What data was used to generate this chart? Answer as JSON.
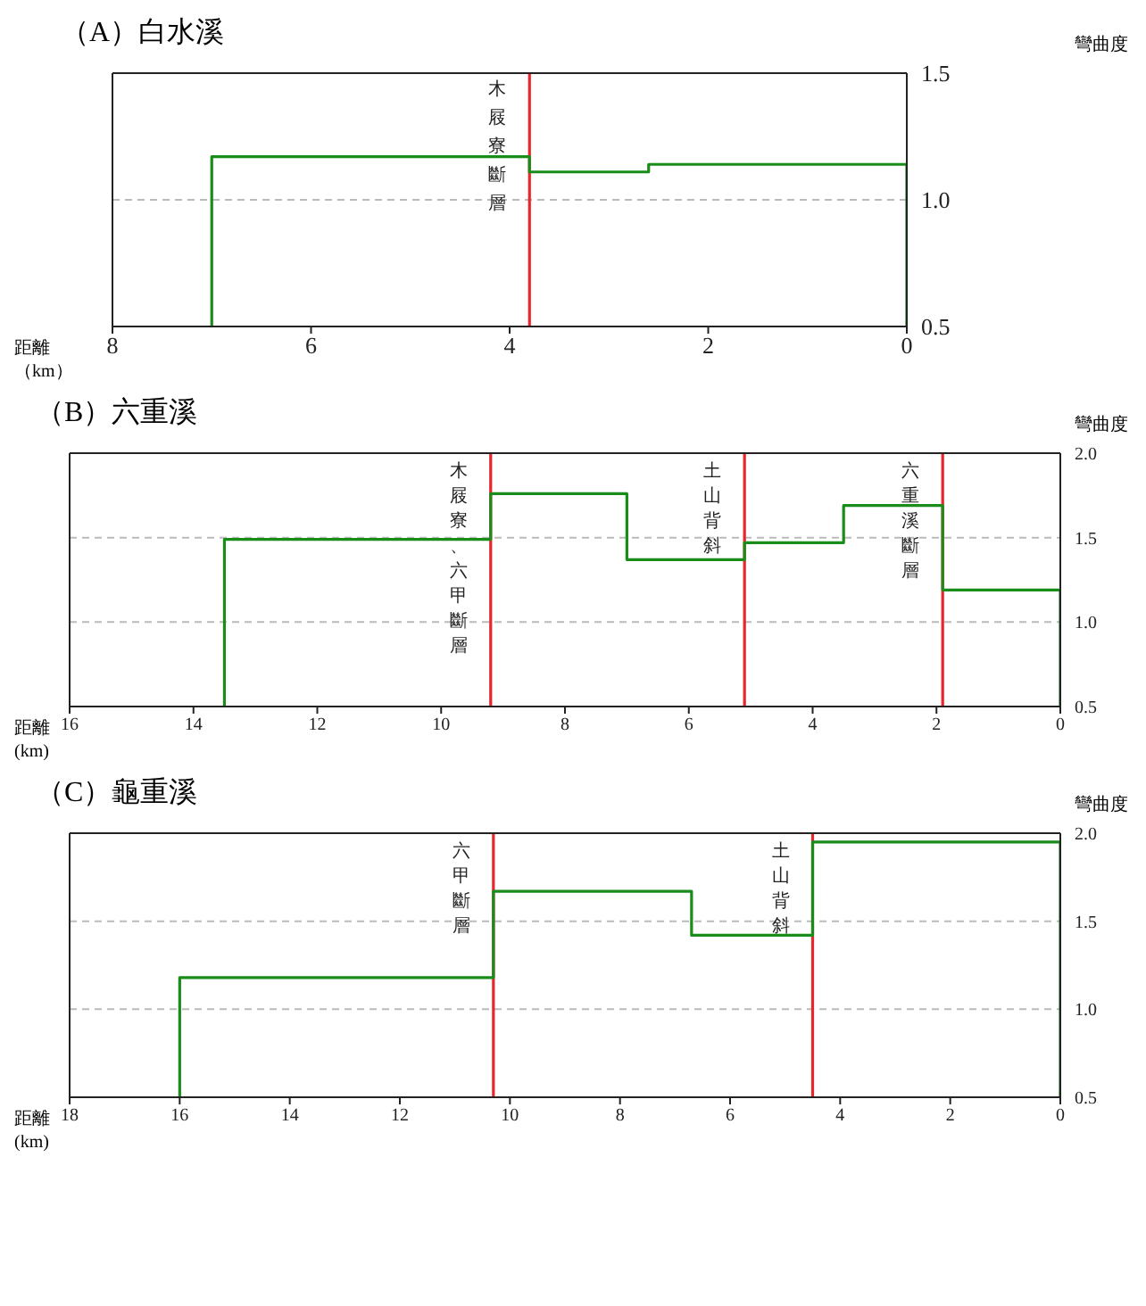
{
  "chart_data": [
    {
      "type": "line",
      "title": "（A）白水溪",
      "ylabel": "彎曲度",
      "xlabel": "距離（km）",
      "xlim": [
        8,
        0
      ],
      "xticks": [
        8,
        6,
        4,
        2,
        0
      ],
      "ylim": [
        0.5,
        1.5
      ],
      "yticks": [
        {
          "value": 0.5,
          "label": "0.5"
        },
        {
          "value": 1,
          "label": "1.0"
        },
        {
          "value": 1.5,
          "label": "1.5"
        }
      ],
      "grid": "y",
      "legend": false,
      "marker": "none",
      "series": [
        {
          "color": "#1a8c1a",
          "x": [
            7.0,
            7.0,
            3.8,
            3.8,
            2.6,
            2.6,
            0,
            0
          ],
          "values": [
            0.5,
            1.17,
            1.17,
            1.11,
            1.11,
            1.14,
            1.14,
            0.5
          ]
        }
      ],
      "ref_lines": [
        {
          "axis": "x",
          "value": 3.8,
          "label": "木屐寮斷層",
          "color": "#e8262b"
        }
      ]
    },
    {
      "type": "line",
      "title": "（B）六重溪",
      "ylabel": "彎曲度",
      "xlabel": "距離(km)",
      "xlim": [
        16,
        0
      ],
      "xticks": [
        16,
        14,
        12,
        10,
        8,
        6,
        4,
        2,
        0
      ],
      "ylim": [
        0.5,
        2.0
      ],
      "yticks": [
        {
          "value": 0.5,
          "label": "0.5"
        },
        {
          "value": 1,
          "label": "1.0"
        },
        {
          "value": 1.5,
          "label": "1.5"
        },
        {
          "value": 2,
          "label": "2.0"
        }
      ],
      "grid": "y",
      "legend": false,
      "marker": "none",
      "series": [
        {
          "color": "#1a8c1a",
          "x": [
            13.5,
            13.5,
            9.2,
            9.2,
            7.0,
            7.0,
            5.1,
            5.1,
            3.5,
            3.5,
            1.9,
            1.9,
            0,
            0
          ],
          "values": [
            0.5,
            1.49,
            1.49,
            1.76,
            1.76,
            1.37,
            1.37,
            1.47,
            1.47,
            1.69,
            1.69,
            1.19,
            1.19,
            0.5
          ]
        }
      ],
      "ref_lines": [
        {
          "axis": "x",
          "value": 9.2,
          "label": "木屐寮、六甲斷層",
          "color": "#e8262b"
        },
        {
          "axis": "x",
          "value": 5.1,
          "label": "土山背斜",
          "color": "#e8262b"
        },
        {
          "axis": "x",
          "value": 1.9,
          "label": "六重溪斷層",
          "color": "#e8262b"
        }
      ]
    },
    {
      "type": "line",
      "title": "（C）龜重溪",
      "ylabel": "彎曲度",
      "xlabel": "距離(km)",
      "xlim": [
        18,
        0
      ],
      "xticks": [
        18,
        16,
        14,
        12,
        10,
        8,
        6,
        4,
        2,
        0
      ],
      "ylim": [
        0.5,
        2.0
      ],
      "yticks": [
        {
          "value": 0.5,
          "label": "0.5"
        },
        {
          "value": 1,
          "label": "1.0"
        },
        {
          "value": 1.5,
          "label": "1.5"
        },
        {
          "value": 2,
          "label": "2.0"
        }
      ],
      "grid": "y",
      "legend": false,
      "marker": "none",
      "series": [
        {
          "color": "#1a8c1a",
          "x": [
            16.0,
            16.0,
            10.3,
            10.3,
            6.7,
            6.7,
            4.5,
            4.5,
            0,
            0
          ],
          "values": [
            0.5,
            1.18,
            1.18,
            1.67,
            1.67,
            1.42,
            1.42,
            1.95,
            1.95,
            0.5
          ]
        }
      ],
      "ref_lines": [
        {
          "axis": "x",
          "value": 10.3,
          "label": "六甲斷層",
          "color": "#e8262b"
        },
        {
          "axis": "x",
          "value": 4.5,
          "label": "土山背斜",
          "color": "#e8262b"
        }
      ]
    }
  ]
}
